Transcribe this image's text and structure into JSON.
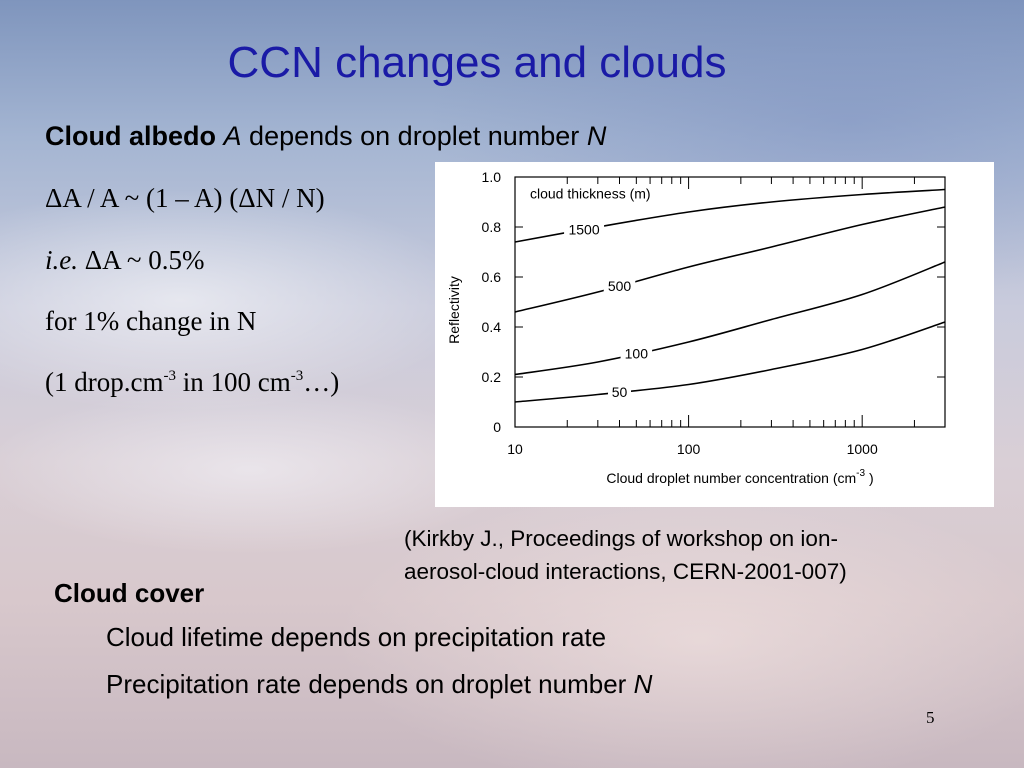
{
  "slide": {
    "title": "CCN changes and clouds",
    "albedo_line": {
      "bold": "Cloud albedo",
      "italic_a": "A",
      "rest": "depends on droplet number",
      "italic_n": "N"
    },
    "eq1": "ΔA / A ~ (1 – A) (ΔN / N)",
    "eq2": {
      "italic": "i.e.",
      "rest": "ΔA ~ 0.5%"
    },
    "eq3": "for 1% change in N",
    "eq4": {
      "part1": "(1 drop.cm",
      "sup1": "-3",
      "part2": " in 100 cm",
      "sup2": "-3",
      "part3": "…)"
    },
    "citation_line1": "(Kirkby J., Proceedings of workshop on ion-",
    "citation_line2": "aerosol-cloud interactions, CERN-2001-007)",
    "cloud_cover": "Cloud cover",
    "bullet1": "Cloud lifetime depends on precipitation rate",
    "bullet2": {
      "text": "Precipitation rate depends on droplet number",
      "italic": "N"
    },
    "page_number": "5"
  },
  "chart_data": {
    "type": "line",
    "title": "",
    "xlabel": "Cloud droplet number concentration (cm",
    "xlabel_sup": "-3",
    "xlabel_end": " )",
    "ylabel": "Reflectivity",
    "x_scale": "log",
    "xlim": [
      10,
      3000
    ],
    "ylim": [
      0,
      1.0
    ],
    "x_ticks": [
      10,
      100,
      1000
    ],
    "x_tick_labels": [
      "10",
      "100",
      "1000"
    ],
    "y_ticks": [
      0,
      0.2,
      0.4,
      0.6,
      0.8,
      1.0
    ],
    "y_tick_labels": [
      "0",
      "0.2",
      "0.4",
      "0.6",
      "0.8",
      "1.0"
    ],
    "legend_title": "cloud thickness (m)",
    "series": [
      {
        "name": "1500",
        "x": [
          10,
          30,
          100,
          300,
          1000,
          3000
        ],
        "y": [
          0.74,
          0.8,
          0.86,
          0.9,
          0.93,
          0.95
        ]
      },
      {
        "name": "500",
        "x": [
          10,
          30,
          100,
          300,
          1000,
          3000
        ],
        "y": [
          0.46,
          0.54,
          0.64,
          0.72,
          0.81,
          0.88
        ]
      },
      {
        "name": "100",
        "x": [
          10,
          30,
          100,
          300,
          1000,
          3000
        ],
        "y": [
          0.21,
          0.26,
          0.34,
          0.43,
          0.53,
          0.66
        ]
      },
      {
        "name": "50",
        "x": [
          10,
          30,
          100,
          300,
          1000,
          3000
        ],
        "y": [
          0.1,
          0.13,
          0.17,
          0.23,
          0.31,
          0.42
        ]
      }
    ],
    "colors": {
      "lines": "#000000",
      "background": "#ffffff"
    }
  }
}
